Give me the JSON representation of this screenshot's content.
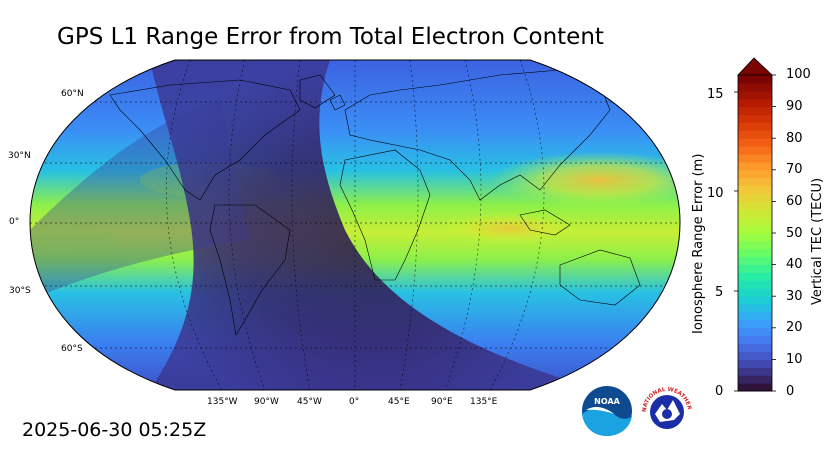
{
  "title": "GPS L1 Range Error from Total Electron Content",
  "timestamp": "2025-06-30 05:25Z",
  "map": {
    "projection": "Robinson",
    "parallel_labels": [
      "60°N",
      "30°N",
      "0°",
      "30°S",
      "60°S"
    ],
    "meridian_labels": [
      "135°W",
      "90°W",
      "45°W",
      "0°",
      "45°E",
      "90°E",
      "135°E"
    ],
    "field_description": "Vertical TEC shaded, highest (~50-60 TECU) along the equatorial anomaly over Asia and the Pacific, lowest (<10 TECU) on the night side over the Atlantic and South America"
  },
  "colorbar": {
    "left_axis_title": "Ionosphere Range Error (m)",
    "left_ticks": [
      "15",
      "10",
      "5",
      "0"
    ],
    "right_axis_title": "Vertical TEC (TECU)",
    "right_ticks": [
      "100",
      "90",
      "80",
      "70",
      "60",
      "50",
      "40",
      "30",
      "20",
      "10",
      "0"
    ],
    "range": [
      0,
      100
    ],
    "extend": "max",
    "colormap": [
      "#30123b",
      "#4145ab",
      "#4675ed",
      "#39a2fc",
      "#1bcfd4",
      "#24eca6",
      "#61fc6c",
      "#a4fc3b",
      "#d1e834",
      "#f3c63a",
      "#fe9b2d",
      "#f36315",
      "#d93806",
      "#b11901",
      "#7a0402"
    ]
  },
  "logos": {
    "noaa_text": "NOAA",
    "nws_text": "NATIONAL WEATHER SERVICE"
  }
}
